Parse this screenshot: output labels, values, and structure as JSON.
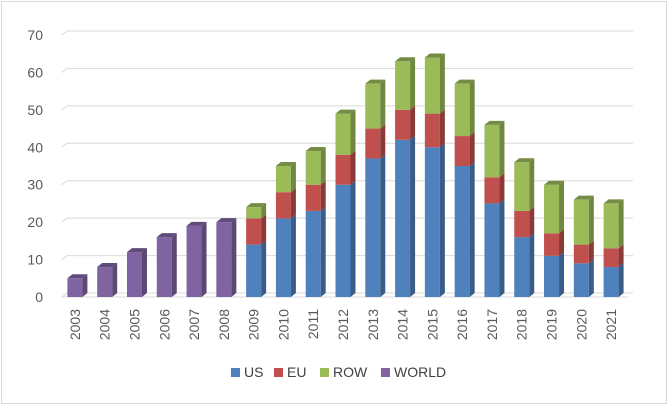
{
  "chart_data": {
    "type": "bar",
    "stacked": true,
    "style": "3d-column",
    "categories": [
      "2003",
      "2004",
      "2005",
      "2006",
      "2007",
      "2008",
      "2009",
      "2010",
      "2011",
      "2012",
      "2013",
      "2014",
      "2015",
      "2016",
      "2017",
      "2018",
      "2019",
      "2020",
      "2021"
    ],
    "series": [
      {
        "name": "US",
        "color": "#4f81bd",
        "values": [
          0,
          0,
          0,
          0,
          0,
          0,
          14,
          21,
          23,
          30,
          37,
          42,
          40,
          35,
          25,
          16,
          11,
          9,
          8
        ]
      },
      {
        "name": "EU",
        "color": "#c0504d",
        "values": [
          0,
          0,
          0,
          0,
          0,
          0,
          7,
          7,
          7,
          8,
          8,
          8,
          9,
          8,
          7,
          7,
          6,
          5,
          5
        ]
      },
      {
        "name": "ROW",
        "color": "#9bbb59",
        "values": [
          0,
          0,
          0,
          0,
          0,
          0,
          3,
          7,
          9,
          11,
          12,
          13,
          15,
          14,
          14,
          13,
          13,
          12,
          12
        ]
      },
      {
        "name": "WORLD",
        "color": "#8064a2",
        "values": [
          5,
          8,
          12,
          16,
          19,
          20,
          0,
          0,
          0,
          0,
          0,
          0,
          0,
          0,
          0,
          0,
          0,
          0,
          0
        ]
      }
    ],
    "ylim": [
      0,
      70
    ],
    "yticks": [
      "0",
      "10",
      "20",
      "30",
      "40",
      "50",
      "60",
      "70"
    ],
    "grid": true,
    "legend_position": "bottom",
    "title": "",
    "xlabel": "",
    "ylabel": ""
  }
}
